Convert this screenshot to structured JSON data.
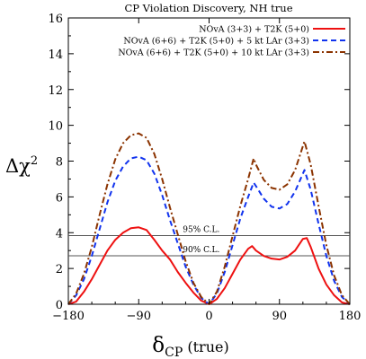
{
  "chart_data": {
    "type": "line",
    "title": "CP Violation Discovery, NH true",
    "xlabel": "δ",
    "xlabel_sub": "CP",
    "xlabel_suffix": " (true)",
    "ylabel": "Δχ",
    "ylabel_sup": "2",
    "xlim": [
      -180,
      180
    ],
    "ylim": [
      0,
      16
    ],
    "xticks": [
      -180,
      -90,
      0,
      90,
      180
    ],
    "yticks": [
      0,
      2,
      4,
      6,
      8,
      10,
      12,
      14,
      16
    ],
    "grid": false,
    "legend_position": "top-right",
    "reference_lines": [
      {
        "y": 3.84,
        "label": "95% C.L."
      },
      {
        "y": 2.71,
        "label": "90% C.L."
      }
    ],
    "series": [
      {
        "name": "NOvA (3+3) + T2K (5+0)",
        "color": "#ee1111",
        "dash": "solid",
        "x": [
          -180,
          -170,
          -160,
          -150,
          -140,
          -130,
          -120,
          -110,
          -100,
          -90,
          -80,
          -70,
          -60,
          -50,
          -40,
          -30,
          -20,
          -10,
          0,
          10,
          20,
          30,
          40,
          50,
          55,
          60,
          70,
          80,
          90,
          100,
          110,
          120,
          125,
          130,
          140,
          150,
          160,
          170,
          180
        ],
        "y": [
          0,
          0.15,
          0.7,
          1.4,
          2.2,
          3.0,
          3.6,
          4.0,
          4.25,
          4.3,
          4.15,
          3.6,
          3.0,
          2.5,
          1.8,
          1.2,
          0.65,
          0.2,
          0,
          0.3,
          0.9,
          1.7,
          2.5,
          3.1,
          3.25,
          3.0,
          2.7,
          2.55,
          2.5,
          2.65,
          3.0,
          3.65,
          3.7,
          3.2,
          2.0,
          1.1,
          0.5,
          0.1,
          0
        ]
      },
      {
        "name": "NOvA (6+6) + T2K (5+0) + 5 kt LAr (3+3)",
        "color": "#1133ee",
        "dash": "dashed",
        "x": [
          -180,
          -170,
          -160,
          -150,
          -140,
          -130,
          -120,
          -110,
          -100,
          -90,
          -80,
          -70,
          -60,
          -50,
          -40,
          -30,
          -20,
          -10,
          0,
          10,
          20,
          30,
          40,
          50,
          57,
          60,
          70,
          80,
          90,
          100,
          110,
          122,
          130,
          140,
          150,
          160,
          170,
          180
        ],
        "y": [
          0,
          0.5,
          1.4,
          2.7,
          4.2,
          5.7,
          6.9,
          7.7,
          8.15,
          8.25,
          8.05,
          7.3,
          6.1,
          4.7,
          3.4,
          2.1,
          1.1,
          0.35,
          0,
          0.6,
          1.8,
          3.3,
          4.8,
          6.0,
          6.8,
          6.6,
          5.9,
          5.45,
          5.35,
          5.6,
          6.3,
          7.5,
          6.4,
          4.5,
          2.7,
          1.3,
          0.4,
          0
        ]
      },
      {
        "name": "NOvA (6+6) + T2K (5+0) + 10 kt LAr (3+3)",
        "color": "#8b3300",
        "dash": "dashdot",
        "x": [
          -180,
          -170,
          -160,
          -150,
          -140,
          -130,
          -120,
          -110,
          -100,
          -90,
          -80,
          -70,
          -60,
          -50,
          -40,
          -30,
          -20,
          -10,
          0,
          10,
          20,
          30,
          40,
          50,
          57,
          60,
          70,
          80,
          90,
          100,
          110,
          122,
          130,
          140,
          150,
          160,
          170,
          180
        ],
        "y": [
          0,
          0.6,
          1.7,
          3.2,
          5.0,
          6.7,
          8.1,
          9.0,
          9.45,
          9.55,
          9.3,
          8.4,
          7.0,
          5.4,
          3.9,
          2.4,
          1.2,
          0.4,
          0,
          0.7,
          2.1,
          3.8,
          5.5,
          7.0,
          8.15,
          7.8,
          6.95,
          6.5,
          6.4,
          6.7,
          7.5,
          9.1,
          7.8,
          5.5,
          3.3,
          1.6,
          0.5,
          0
        ]
      }
    ]
  }
}
